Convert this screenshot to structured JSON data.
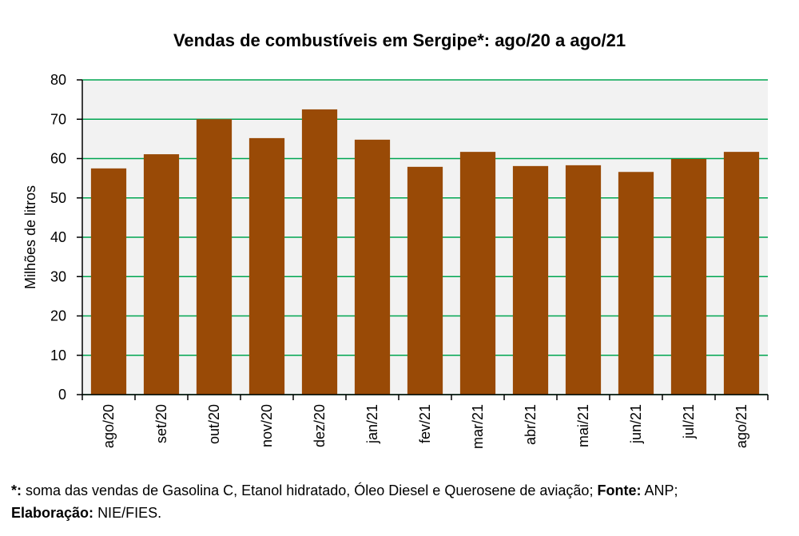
{
  "chart_data": {
    "type": "bar",
    "title": "Vendas de combustíveis em Sergipe*: ago/20 a ago/21",
    "y_label": "Milhões de litros",
    "categories": [
      "ago/20",
      "set/20",
      "out/20",
      "nov/20",
      "dez/20",
      "jan/21",
      "fev/21",
      "mar/21",
      "abr/21",
      "mai/21",
      "jun/21",
      "jul/21",
      "ago/21"
    ],
    "values": [
      57.5,
      61.1,
      70.0,
      65.2,
      72.5,
      64.8,
      57.9,
      61.7,
      58.1,
      58.3,
      56.6,
      59.9,
      61.7
    ],
    "color": "#994a06",
    "ylim": [
      0,
      80
    ],
    "yticks": [
      0,
      10,
      20,
      30,
      40,
      50,
      60,
      70,
      80
    ],
    "grid": true,
    "grid_color": "#00a550",
    "footnote": {
      "line1": [
        "*:",
        "soma das vendas de Gasolina C, Etanol hidratado, Óleo Diesel e Querosene de aviação;",
        "Fonte:",
        "ANP;"
      ],
      "line2": [
        "Elaboração:",
        "NIE/FIES."
      ]
    }
  }
}
